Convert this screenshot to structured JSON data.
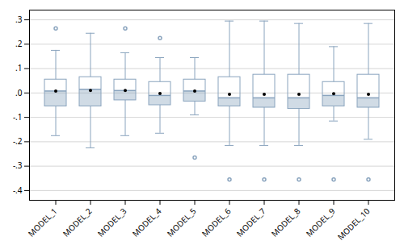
{
  "chart_data": {
    "type": "box",
    "categories": [
      "MODEL_1",
      "MODEL_2",
      "MODEL_3",
      "MODEL_4",
      "MODEL_5",
      "MODEL_6",
      "MODEL_7",
      "MODEL_8",
      "MODEL_9",
      "MODEL_10"
    ],
    "whislo": [
      -0.175,
      -0.225,
      -0.175,
      -0.165,
      -0.09,
      -0.215,
      -0.215,
      -0.215,
      -0.115,
      -0.19
    ],
    "q1": [
      -0.055,
      -0.055,
      -0.03,
      -0.05,
      -0.035,
      -0.055,
      -0.06,
      -0.065,
      -0.055,
      -0.06
    ],
    "med": [
      0.008,
      0.015,
      0.01,
      -0.01,
      0.008,
      -0.02,
      -0.02,
      -0.02,
      -0.01,
      -0.02
    ],
    "q3": [
      0.055,
      0.065,
      0.055,
      0.045,
      0.055,
      0.065,
      0.075,
      0.075,
      0.045,
      0.075
    ],
    "whishi": [
      0.175,
      0.245,
      0.165,
      0.145,
      0.145,
      0.295,
      0.295,
      0.285,
      0.19,
      0.285
    ],
    "mean": [
      0.008,
      0.01,
      0.01,
      -0.002,
      0.008,
      -0.005,
      -0.005,
      -0.005,
      -0.003,
      -0.005
    ],
    "fliers": [
      [
        0.265
      ],
      [],
      [
        0.265
      ],
      [
        0.225
      ],
      [
        -0.265
      ],
      [
        -0.355
      ],
      [
        -0.355
      ],
      [
        -0.355
      ],
      [
        -0.355
      ],
      [
        -0.355
      ]
    ],
    "color": "#8aa4be",
    "ylim": [
      -0.44,
      0.34
    ],
    "yticks": [
      {
        "value": -0.4,
        "label": "-.4"
      },
      {
        "value": -0.3,
        "label": "-.3"
      },
      {
        "value": -0.2,
        "label": "-.2"
      },
      {
        "value": -0.1,
        "label": "-.1"
      },
      {
        "value": 0.0,
        "label": ".0"
      },
      {
        "value": 0.1,
        "label": ".1"
      },
      {
        "value": 0.2,
        "label": ".2"
      },
      {
        "value": 0.3,
        "label": ".3"
      }
    ],
    "grid": true
  }
}
